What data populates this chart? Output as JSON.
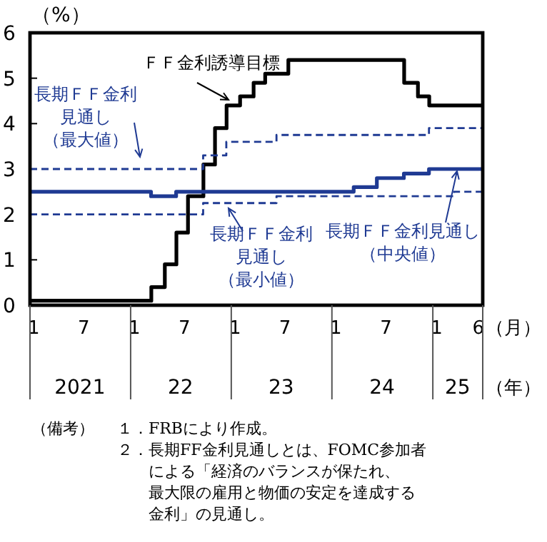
{
  "chart_data": {
    "type": "step",
    "ylabel": "（%）",
    "xlabel": "（月）",
    "x2label": "（年）",
    "xlim": [
      "2021-01-01",
      "2025-07-01"
    ],
    "ylim": [
      0,
      6
    ],
    "yticks": [
      0,
      1,
      2,
      3,
      4,
      5,
      6
    ],
    "xticks": [
      {
        "value": "2021-01-15",
        "label": "1"
      },
      {
        "value": "2021-07-15",
        "label": "7"
      },
      {
        "value": "2022-01-15",
        "label": "1"
      },
      {
        "value": "2022-07-15",
        "label": "7"
      },
      {
        "value": "2023-01-15",
        "label": "1"
      },
      {
        "value": "2023-07-15",
        "label": "7"
      },
      {
        "value": "2024-01-15",
        "label": "1"
      },
      {
        "value": "2024-07-15",
        "label": "7"
      },
      {
        "value": "2025-01-15",
        "label": "1"
      },
      {
        "value": "2025-06-15",
        "label": "6"
      }
    ],
    "x2lim": [
      "2021-01-01",
      "2025-07-01"
    ],
    "x2ticks": [
      {
        "value": "2021-07-01",
        "label": "2021"
      },
      {
        "value": "2022-07-01",
        "label": "22"
      },
      {
        "value": "2023-07-01",
        "label": "23"
      },
      {
        "value": "2024-07-01",
        "label": "24"
      },
      {
        "value": "2025-04-01",
        "label": "25"
      }
    ],
    "grid": false,
    "series": [
      {
        "name": "ＦＦ金利誘導目標",
        "color": "#000000",
        "line_style": "solid",
        "x": [
          "2021-01-01",
          "2022-03-17",
          "2022-05-05",
          "2022-06-16",
          "2022-07-28",
          "2022-09-22",
          "2022-11-03",
          "2022-12-15",
          "2023-02-02",
          "2023-03-23",
          "2023-05-04",
          "2023-07-27",
          "2024-09-19",
          "2024-11-08",
          "2024-12-19",
          "2025-07-01"
        ],
        "values": [
          0.1,
          0.4,
          0.9,
          1.6,
          2.4,
          3.1,
          3.9,
          4.4,
          4.6,
          4.9,
          5.1,
          5.4,
          4.9,
          4.6,
          4.4,
          4.4
        ]
      },
      {
        "name": "長期ＦＦ金利見通し（最大値）",
        "color": "#1f3a93",
        "line_style": "dashed",
        "x": [
          "2021-01-01",
          "2022-09-21",
          "2022-12-14",
          "2023-06-14",
          "2024-12-18",
          "2025-07-01"
        ],
        "values": [
          3.0,
          3.3,
          3.6,
          3.75,
          3.9,
          3.9
        ]
      },
      {
        "name": "長期ＦＦ金利見通し（中央値）",
        "color": "#1f3a93",
        "line_style": "solid",
        "x": [
          "2021-01-01",
          "2022-03-16",
          "2022-06-15",
          "2024-03-20",
          "2024-06-12",
          "2024-09-18",
          "2024-12-18",
          "2025-07-01"
        ],
        "values": [
          2.5,
          2.4,
          2.5,
          2.6,
          2.8,
          2.9,
          3.0,
          3.0
        ]
      },
      {
        "name": "長期ＦＦ金利見通し（最小値）",
        "color": "#1f3a93",
        "line_style": "dashed",
        "x": [
          "2021-01-01",
          "2022-09-21",
          "2023-06-14",
          "2025-03-19",
          "2025-07-01"
        ],
        "values": [
          2.0,
          2.25,
          2.4,
          2.5,
          2.5
        ]
      }
    ],
    "annotations": [
      "（備考）",
      "１．FRBにより作成。",
      "２．長期FF金利見通しとは、FOMC参加者による「経済のバランスが保たれ、最大限の雇用と物価の安定を達成する金利」の見通し。"
    ]
  }
}
